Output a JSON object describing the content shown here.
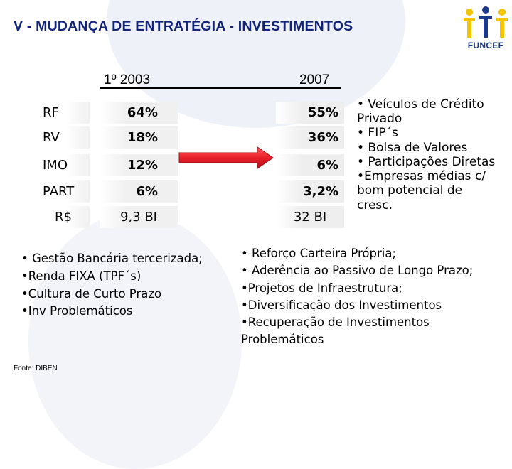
{
  "title": "V - MUDANÇA DE ENTRATÉGIA - INVESTIMENTOS",
  "logo": {
    "text": "FUNCEF",
    "color_blue": "#1c3a8a",
    "color_yellow": "#f5c400"
  },
  "table": {
    "col1_header": "1º 2003",
    "col2_header": "2007",
    "rows": [
      {
        "label": "RF",
        "v2003": "64%",
        "v2007": "55%"
      },
      {
        "label": "RV",
        "v2003": "18%",
        "v2007": "36%"
      },
      {
        "label": "IMO",
        "v2003": "12%",
        "v2007": "6%"
      },
      {
        "label": "PART",
        "v2003": "6%",
        "v2007": "3,2%"
      },
      {
        "label": "R$",
        "v2003": "9,3 BI",
        "v2007": "32 BI"
      }
    ]
  },
  "arrow": {
    "color": "#e8202a"
  },
  "right_bullets": [
    "• Veículos de Crédito",
    "Privado",
    "• FIP´s",
    "• Bolsa de Valores",
    "• Participações Diretas",
    "•Empresas médias c/",
    "bom potencial de",
    "cresc."
  ],
  "left_bullets": [
    "• Gestão Bancária tercerizada;",
    "•Renda FIXA (TPF´s)",
    "•Cultura de Curto Prazo",
    "•Inv Problemáticos"
  ],
  "bottom_bullets": [
    "• Reforço Carteira Própria;",
    "• Aderência ao Passivo de Longo Prazo;",
    "•Projetos de Infraestrutura;",
    "•Diversificação dos Investimentos",
    "•Recuperação de Investimentos",
    "Problemáticos"
  ],
  "source": "Fonte: DIBEN"
}
